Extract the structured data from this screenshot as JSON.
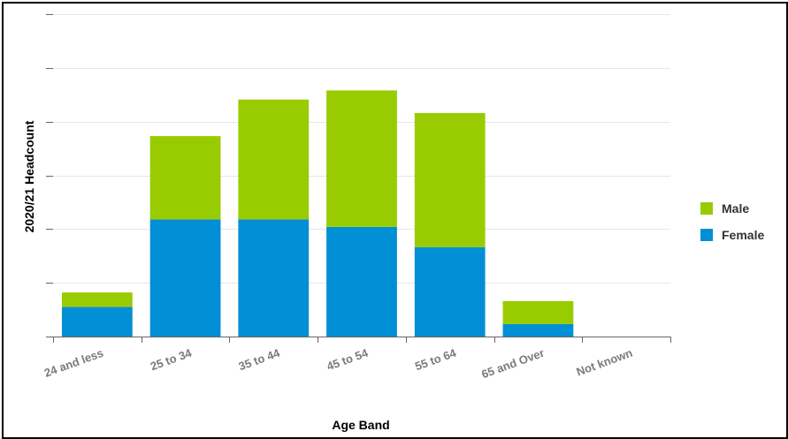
{
  "chart_data": {
    "type": "bar",
    "stacked": true,
    "title": "",
    "xlabel": "Age Band",
    "ylabel": "2020/21 Headcount",
    "categories": [
      "24 and less",
      "25 to 34",
      "35 to 44",
      "45 to 54",
      "55 to 64",
      "65 and Over",
      "Not known"
    ],
    "series": [
      {
        "name": "Female",
        "color": "#008fd5",
        "values": [
          0.55,
          2.18,
          2.18,
          2.04,
          1.66,
          0.23,
          0
        ]
      },
      {
        "name": "Male",
        "color": "#99cc00",
        "values": [
          0.27,
          1.55,
          2.23,
          2.54,
          2.5,
          0.43,
          0
        ]
      }
    ],
    "ylim": [
      0,
      6
    ],
    "y_ticks": [
      0,
      1,
      2,
      3,
      4,
      5,
      6
    ],
    "y_tick_labels_visible": false,
    "grid": true,
    "legend_position": "right"
  }
}
